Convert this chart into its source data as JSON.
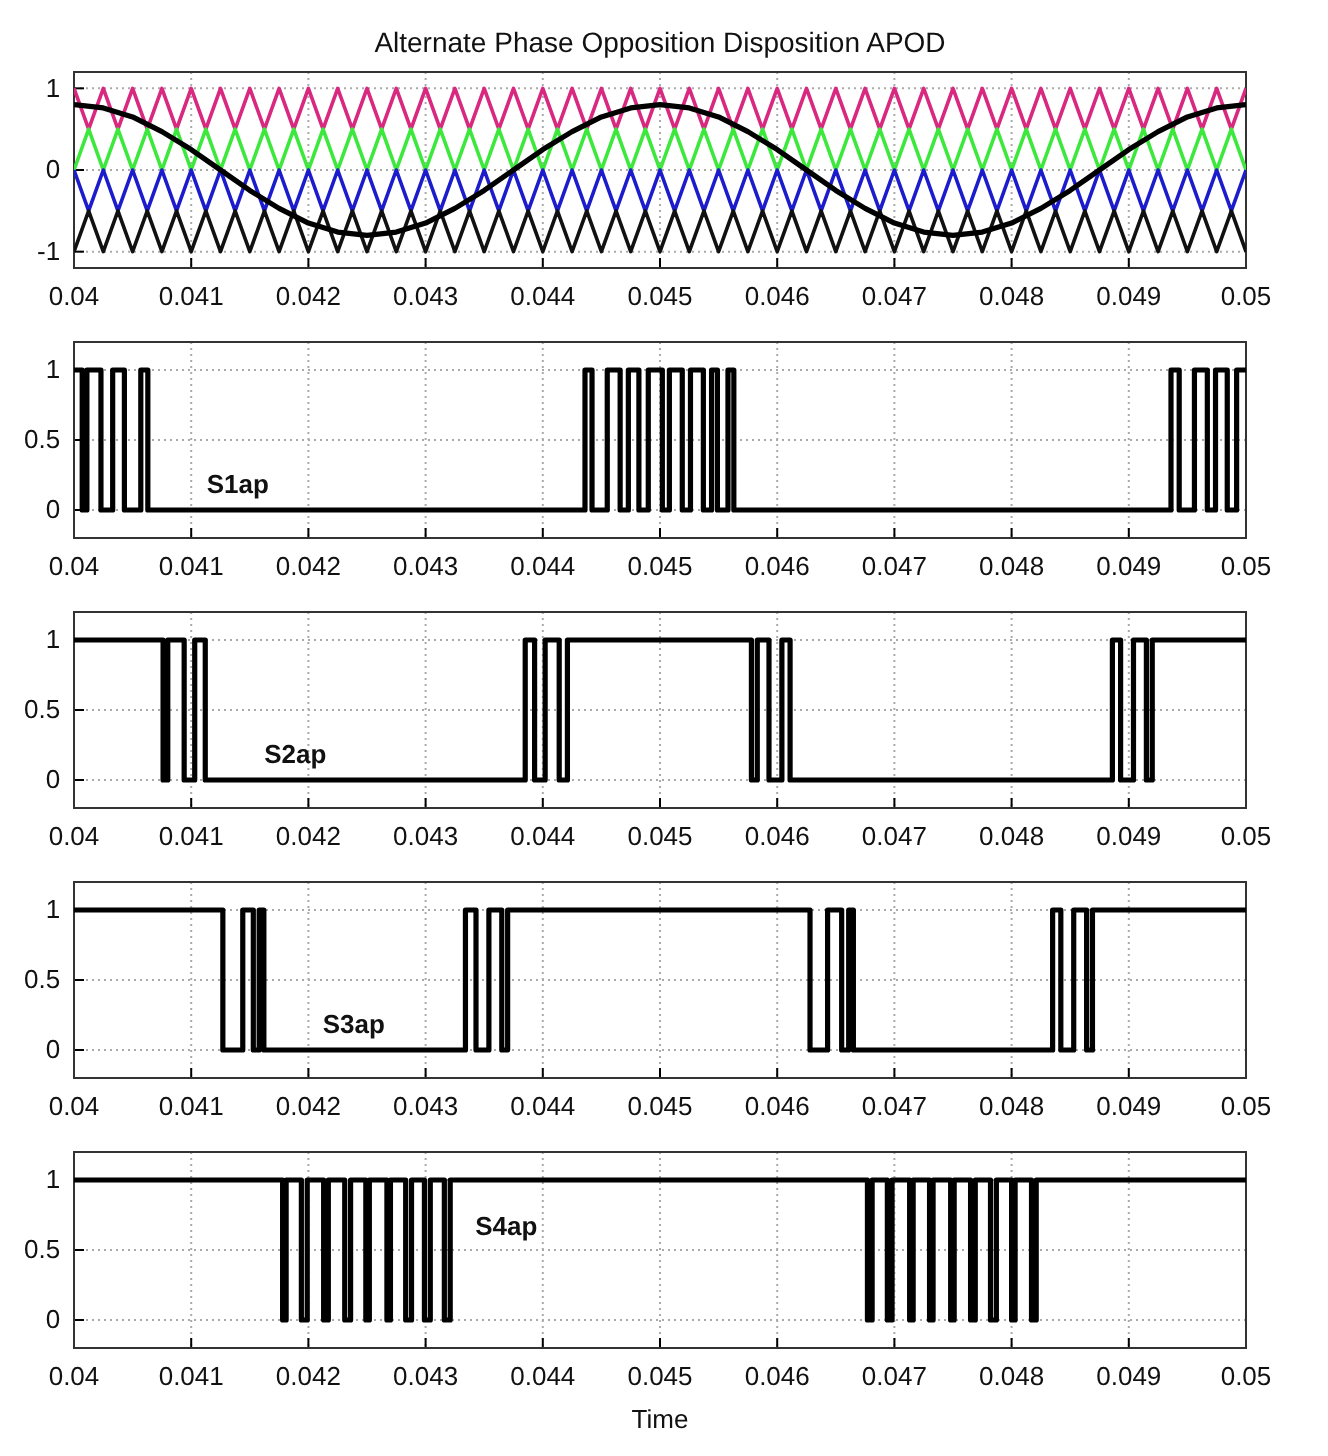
{
  "chart_data": [
    {
      "type": "line",
      "title": "Alternate Phase Opposition Disposition APOD",
      "grid": true,
      "marker": "none",
      "line_style": "solid",
      "xlim": [
        0.04,
        0.05
      ],
      "xticks": [
        0.04,
        0.041,
        0.042,
        0.043,
        0.044,
        0.045,
        0.046,
        0.047,
        0.048,
        0.049,
        0.05
      ],
      "ylim": [
        -1.2,
        1.2
      ],
      "yticks": [
        -1,
        0,
        1
      ],
      "x": [
        0.04,
        0.040125,
        0.04025,
        0.040375,
        0.0405,
        0.040625,
        0.04075,
        0.040875,
        0.041,
        0.041125,
        0.04125,
        0.041375,
        0.0415,
        0.041625,
        0.04175,
        0.041875,
        0.042,
        0.042125,
        0.04225,
        0.042375,
        0.0425,
        0.042625,
        0.04275,
        0.042875,
        0.043,
        0.043125,
        0.04325,
        0.043375,
        0.0435,
        0.043625,
        0.04375,
        0.043875,
        0.044,
        0.044125,
        0.04425,
        0.044375,
        0.0445,
        0.044625,
        0.04475,
        0.044875,
        0.045,
        0.045125,
        0.04525,
        0.045375,
        0.0455,
        0.045625,
        0.04575,
        0.045875,
        0.046,
        0.046125,
        0.04625,
        0.046375,
        0.0465,
        0.046625,
        0.04675,
        0.046875,
        0.047,
        0.047125,
        0.04725,
        0.047375,
        0.0475,
        0.047625,
        0.04775,
        0.047875,
        0.048,
        0.048125,
        0.04825,
        0.048375,
        0.0485,
        0.048625,
        0.04875,
        0.048875,
        0.049,
        0.049125,
        0.04925,
        0.049375,
        0.0495,
        0.049625,
        0.04975,
        0.049875,
        0.05
      ],
      "series": [
        {
          "color": "#d8287f",
          "values": [
            1,
            0.5,
            1,
            0.5,
            1,
            0.5,
            1,
            0.5,
            1,
            0.5,
            1,
            0.5,
            1,
            0.5,
            1,
            0.5,
            1,
            0.5,
            1,
            0.5,
            1,
            0.5,
            1,
            0.5,
            1,
            0.5,
            1,
            0.5,
            1,
            0.5,
            1,
            0.5,
            1,
            0.5,
            1,
            0.5,
            1,
            0.5,
            1,
            0.5,
            1,
            0.5,
            1,
            0.5,
            1,
            0.5,
            1,
            0.5,
            1,
            0.5,
            1,
            0.5,
            1,
            0.5,
            1,
            0.5,
            1,
            0.5,
            1,
            0.5,
            1,
            0.5,
            1,
            0.5,
            1,
            0.5,
            1,
            0.5,
            1,
            0.5,
            1,
            0.5,
            1,
            0.5,
            1,
            0.5,
            1,
            0.5,
            1,
            0.5,
            1
          ]
        },
        {
          "color": "#3de83d",
          "values": [
            0,
            0.5,
            0,
            0.5,
            0,
            0.5,
            0,
            0.5,
            0,
            0.5,
            0,
            0.5,
            0,
            0.5,
            0,
            0.5,
            0,
            0.5,
            0,
            0.5,
            0,
            0.5,
            0,
            0.5,
            0,
            0.5,
            0,
            0.5,
            0,
            0.5,
            0,
            0.5,
            0,
            0.5,
            0,
            0.5,
            0,
            0.5,
            0,
            0.5,
            0,
            0.5,
            0,
            0.5,
            0,
            0.5,
            0,
            0.5,
            0,
            0.5,
            0,
            0.5,
            0,
            0.5,
            0,
            0.5,
            0,
            0.5,
            0,
            0.5,
            0,
            0.5,
            0,
            0.5,
            0,
            0.5,
            0,
            0.5,
            0,
            0.5,
            0,
            0.5,
            0,
            0.5,
            0,
            0.5,
            0,
            0.5,
            0,
            0.5,
            0
          ]
        },
        {
          "color": "#1c1ccc",
          "values": [
            0,
            -0.5,
            0,
            -0.5,
            0,
            -0.5,
            0,
            -0.5,
            0,
            -0.5,
            0,
            -0.5,
            0,
            -0.5,
            0,
            -0.5,
            0,
            -0.5,
            0,
            -0.5,
            0,
            -0.5,
            0,
            -0.5,
            0,
            -0.5,
            0,
            -0.5,
            0,
            -0.5,
            0,
            -0.5,
            0,
            -0.5,
            0,
            -0.5,
            0,
            -0.5,
            0,
            -0.5,
            0,
            -0.5,
            0,
            -0.5,
            0,
            -0.5,
            0,
            -0.5,
            0,
            -0.5,
            0,
            -0.5,
            0,
            -0.5,
            0,
            -0.5,
            0,
            -0.5,
            0,
            -0.5,
            0,
            -0.5,
            0,
            -0.5,
            0,
            -0.5,
            0,
            -0.5,
            0,
            -0.5,
            0,
            -0.5,
            0,
            -0.5,
            0,
            -0.5,
            0,
            -0.5,
            0,
            -0.5,
            0
          ]
        },
        {
          "color": "#111111",
          "values": [
            -1,
            -0.5,
            -1,
            -0.5,
            -1,
            -0.5,
            -1,
            -0.5,
            -1,
            -0.5,
            -1,
            -0.5,
            -1,
            -0.5,
            -1,
            -0.5,
            -1,
            -0.5,
            -1,
            -0.5,
            -1,
            -0.5,
            -1,
            -0.5,
            -1,
            -0.5,
            -1,
            -0.5,
            -1,
            -0.5,
            -1,
            -0.5,
            -1,
            -0.5,
            -1,
            -0.5,
            -1,
            -0.5,
            -1,
            -0.5,
            -1,
            -0.5,
            -1,
            -0.5,
            -1,
            -0.5,
            -1,
            -0.5,
            -1,
            -0.5,
            -1,
            -0.5,
            -1,
            -0.5,
            -1,
            -0.5,
            -1,
            -0.5,
            -1,
            -0.5,
            -1,
            -0.5,
            -1,
            -0.5,
            -1,
            -0.5,
            -1,
            -0.5,
            -1,
            -0.5,
            -1,
            -0.5,
            -1,
            -0.5,
            -1,
            -0.5,
            -1,
            -0.5,
            -1,
            -0.5,
            -1
          ]
        },
        {
          "color": "#000000",
          "x": [
            0.04,
            0.04025,
            0.0405,
            0.04075,
            0.041,
            0.04125,
            0.0415,
            0.04175,
            0.042,
            0.04225,
            0.0425,
            0.04275,
            0.043,
            0.04325,
            0.0435,
            0.04375,
            0.044,
            0.04425,
            0.0445,
            0.04475,
            0.045,
            0.04525,
            0.0455,
            0.04575,
            0.046,
            0.04625,
            0.0465,
            0.04675,
            0.047,
            0.04725,
            0.0475,
            0.04775,
            0.048,
            0.04825,
            0.0485,
            0.04875,
            0.049,
            0.04925,
            0.0495,
            0.04975,
            0.05
          ],
          "values": [
            0.8,
            0.76,
            0.65,
            0.47,
            0.25,
            0,
            -0.25,
            -0.47,
            -0.65,
            -0.76,
            -0.8,
            -0.76,
            -0.65,
            -0.47,
            -0.25,
            0,
            0.25,
            0.47,
            0.65,
            0.76,
            0.8,
            0.76,
            0.65,
            0.47,
            0.25,
            0,
            -0.25,
            -0.47,
            -0.65,
            -0.76,
            -0.8,
            -0.76,
            -0.65,
            -0.47,
            -0.25,
            0,
            0.25,
            0.47,
            0.65,
            0.76,
            0.8
          ]
        }
      ]
    },
    {
      "type": "step",
      "grid": true,
      "marker": "none",
      "line_style": "solid",
      "xlim": [
        0.04,
        0.05
      ],
      "xticks": [
        0.04,
        0.041,
        0.042,
        0.043,
        0.044,
        0.045,
        0.046,
        0.047,
        0.048,
        0.049,
        0.05
      ],
      "ylim": [
        -0.2,
        1.2
      ],
      "yticks": [
        0,
        0.5,
        1
      ],
      "annotations": [
        "S1ap"
      ],
      "series": [
        {
          "color": "#000000",
          "x": [
            0.04,
            0.04007,
            0.04011,
            0.04023,
            0.04033,
            0.04043,
            0.04057,
            0.04063,
            0.04436,
            0.04442,
            0.04455,
            0.04466,
            0.04473,
            0.04482,
            0.0449,
            0.04502,
            0.04508,
            0.04519,
            0.04526,
            0.04537,
            0.04544,
            0.04549,
            0.04558,
            0.04563,
            0.04936,
            0.04943,
            0.04956,
            0.04967,
            0.04974,
            0.04984,
            0.04992,
            0.05
          ],
          "values": [
            1,
            0,
            1,
            0,
            1,
            0,
            1,
            0,
            1,
            0,
            1,
            0,
            1,
            0,
            1,
            0,
            1,
            0,
            1,
            0,
            1,
            0,
            1,
            0,
            1,
            0,
            1,
            0,
            1,
            0,
            1,
            1
          ]
        }
      ]
    },
    {
      "type": "step",
      "grid": true,
      "marker": "none",
      "line_style": "solid",
      "xlim": [
        0.04,
        0.05
      ],
      "xticks": [
        0.04,
        0.041,
        0.042,
        0.043,
        0.044,
        0.045,
        0.046,
        0.047,
        0.048,
        0.049,
        0.05
      ],
      "ylim": [
        -0.2,
        1.2
      ],
      "yticks": [
        0,
        0.5,
        1
      ],
      "annotations": [
        "S2ap"
      ],
      "series": [
        {
          "color": "#000000",
          "x": [
            0.04,
            0.04076,
            0.0408,
            0.04094,
            0.04103,
            0.04112,
            0.04385,
            0.04393,
            0.04402,
            0.04414,
            0.04421,
            0.04578,
            0.04583,
            0.04593,
            0.04604,
            0.04611,
            0.04886,
            0.04893,
            0.04904,
            0.04915,
            0.0492,
            0.05
          ],
          "values": [
            1,
            0,
            1,
            0,
            1,
            0,
            1,
            0,
            1,
            0,
            1,
            0,
            1,
            0,
            1,
            0,
            1,
            0,
            1,
            0,
            1,
            1
          ]
        }
      ]
    },
    {
      "type": "step",
      "grid": true,
      "marker": "none",
      "line_style": "solid",
      "xlim": [
        0.04,
        0.05
      ],
      "xticks": [
        0.04,
        0.041,
        0.042,
        0.043,
        0.044,
        0.045,
        0.046,
        0.047,
        0.048,
        0.049,
        0.05
      ],
      "ylim": [
        -0.2,
        1.2
      ],
      "yticks": [
        0,
        0.5,
        1
      ],
      "annotations": [
        "S3ap"
      ],
      "series": [
        {
          "color": "#000000",
          "x": [
            0.04,
            0.04127,
            0.04144,
            0.04153,
            0.04158,
            0.04162,
            0.04334,
            0.04343,
            0.04354,
            0.04365,
            0.0437,
            0.04628,
            0.04643,
            0.04655,
            0.04661,
            0.04665,
            0.04835,
            0.04842,
            0.04853,
            0.04864,
            0.04869,
            0.05
          ],
          "values": [
            1,
            0,
            1,
            0,
            1,
            0,
            1,
            0,
            1,
            0,
            1,
            0,
            1,
            0,
            1,
            0,
            1,
            0,
            1,
            0,
            1,
            1
          ]
        }
      ]
    },
    {
      "type": "step",
      "xlabel": "Time",
      "grid": true,
      "marker": "none",
      "line_style": "solid",
      "xlim": [
        0.04,
        0.05
      ],
      "xticks": [
        0.04,
        0.041,
        0.042,
        0.043,
        0.044,
        0.045,
        0.046,
        0.047,
        0.048,
        0.049,
        0.05
      ],
      "ylim": [
        -0.2,
        1.2
      ],
      "yticks": [
        0,
        0.5,
        1
      ],
      "annotations": [
        "S4ap"
      ],
      "series": [
        {
          "color": "#000000",
          "x": [
            0.04,
            0.04178,
            0.04181,
            0.04194,
            0.04199,
            0.04213,
            0.04217,
            0.04231,
            0.04236,
            0.04249,
            0.04252,
            0.04267,
            0.0427,
            0.04283,
            0.04288,
            0.04299,
            0.04304,
            0.04316,
            0.04321,
            0.04677,
            0.04681,
            0.04694,
            0.04698,
            0.04713,
            0.04716,
            0.0473,
            0.04733,
            0.04748,
            0.04751,
            0.04765,
            0.04769,
            0.04782,
            0.04787,
            0.048,
            0.04803,
            0.04817,
            0.04821,
            0.05
          ],
          "values": [
            1,
            0,
            1,
            0,
            1,
            0,
            1,
            0,
            1,
            0,
            1,
            0,
            1,
            0,
            1,
            0,
            1,
            0,
            1,
            0,
            1,
            0,
            1,
            0,
            1,
            0,
            1,
            0,
            1,
            0,
            1,
            0,
            1,
            0,
            1,
            0,
            1,
            1
          ]
        }
      ]
    }
  ]
}
